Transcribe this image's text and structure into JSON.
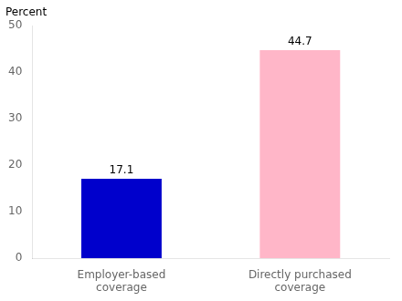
{
  "chart_data": {
    "type": "bar",
    "categories": [
      "Employer-based\ncoverage",
      "Directly purchased\ncoverage"
    ],
    "values": [
      17.1,
      44.7
    ],
    "colors": [
      "#0000cc",
      "#ffb6c8"
    ],
    "ylabel": "Percent",
    "ylim": [
      0,
      50
    ],
    "yticks": [
      0,
      10,
      20,
      30,
      40,
      50
    ],
    "data_labels": true,
    "grid": false
  }
}
